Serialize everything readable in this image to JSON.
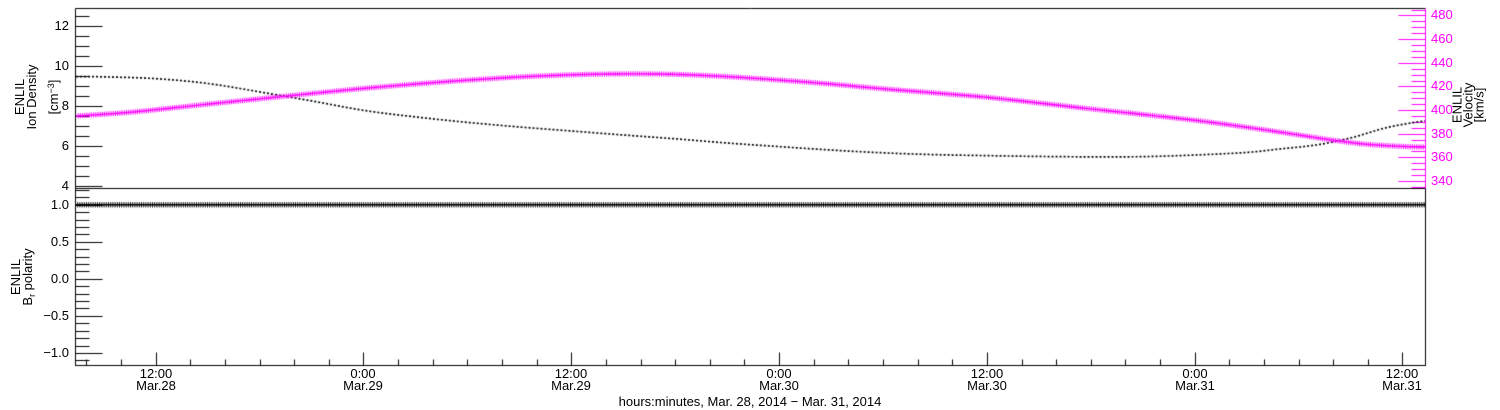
{
  "figure": {
    "background": "#ffffff",
    "axis_color": "#000000",
    "accent_color": "#ff00ff"
  },
  "x_axis": {
    "title": "hours:minutes, Mar. 28, 2014 − Mar. 31, 2014",
    "range_hours_from_mar28_0000": [
      7.37,
      85.33
    ],
    "minor_step": 2,
    "majors": [
      {
        "t": 12,
        "line1": "12:00",
        "line2": "Mar.28"
      },
      {
        "t": 24,
        "line1": "0:00",
        "line2": "Mar.29"
      },
      {
        "t": 36,
        "line1": "12:00",
        "line2": "Mar.29"
      },
      {
        "t": 48,
        "line1": "0:00",
        "line2": "Mar.30"
      },
      {
        "t": 60,
        "line1": "12:00",
        "line2": "Mar.30"
      },
      {
        "t": 72,
        "line1": "0:00",
        "line2": "Mar.31"
      },
      {
        "t": 84,
        "line1": "12:00",
        "line2": "Mar.31"
      }
    ]
  },
  "chart_data": [
    {
      "type": "line",
      "panel": "top",
      "title": "ENLIL ion density and velocity vs time",
      "x_range": [
        7.37,
        85.33
      ],
      "grid": false,
      "left_axis": {
        "title_lines": [
          "ENLIL",
          "Ion Density"
        ],
        "unit_pre": "[cm",
        "unit_sup": "−3",
        "unit_post": "]",
        "range": [
          3.88,
          12.86
        ],
        "minor_step": 0.5,
        "majors": [
          {
            "v": 4,
            "label": "4"
          },
          {
            "v": 6,
            "label": "6"
          },
          {
            "v": 8,
            "label": "8"
          },
          {
            "v": 10,
            "label": "10"
          },
          {
            "v": 12,
            "label": "12"
          }
        ]
      },
      "right_axis": {
        "title_lines": [
          "ENLIL",
          "Velocity",
          "[km/s]"
        ],
        "color": "#ff00ff",
        "range": [
          333.7,
          485.9
        ],
        "minor_step": 5,
        "majors": [
          {
            "v": 340,
            "label": "340"
          },
          {
            "v": 360,
            "label": "360"
          },
          {
            "v": 380,
            "label": "380"
          },
          {
            "v": 400,
            "label": "400"
          },
          {
            "v": 420,
            "label": "420"
          },
          {
            "v": 440,
            "label": "440"
          },
          {
            "v": 460,
            "label": "460"
          },
          {
            "v": 480,
            "label": "480"
          }
        ]
      },
      "series": [
        {
          "name": "ion-density",
          "axis": "left",
          "color": "#000000",
          "style": "dotted",
          "points": [
            [
              7.4,
              9.46
            ],
            [
              9,
              9.45
            ],
            [
              12,
              9.36
            ],
            [
              15,
              9.12
            ],
            [
              18,
              8.7
            ],
            [
              21,
              8.25
            ],
            [
              24,
              7.78
            ],
            [
              27,
              7.45
            ],
            [
              30,
              7.18
            ],
            [
              33,
              6.95
            ],
            [
              36,
              6.75
            ],
            [
              39,
              6.55
            ],
            [
              42,
              6.36
            ],
            [
              45,
              6.15
            ],
            [
              48,
              5.97
            ],
            [
              51,
              5.8
            ],
            [
              54,
              5.66
            ],
            [
              57,
              5.57
            ],
            [
              60,
              5.52
            ],
            [
              63,
              5.48
            ],
            [
              66,
              5.46
            ],
            [
              69,
              5.47
            ],
            [
              72,
              5.55
            ],
            [
              75,
              5.68
            ],
            [
              77,
              5.86
            ],
            [
              79,
              6.05
            ],
            [
              81,
              6.4
            ],
            [
              83,
              6.9
            ],
            [
              84.5,
              7.15
            ],
            [
              85.3,
              7.25
            ]
          ]
        },
        {
          "name": "velocity",
          "axis": "right",
          "color": "#ff00ff",
          "style": "plusline",
          "points": [
            [
              7.4,
              395.0
            ],
            [
              10,
              397.5
            ],
            [
              12,
              400.3
            ],
            [
              15,
              405.0
            ],
            [
              18,
              409.5
            ],
            [
              21,
              414.0
            ],
            [
              24,
              418.3
            ],
            [
              27,
              422.0
            ],
            [
              30,
              425.3
            ],
            [
              33,
              428.0
            ],
            [
              36,
              429.8
            ],
            [
              39,
              430.6
            ],
            [
              42,
              430.2
            ],
            [
              45,
              428.3
            ],
            [
              48,
              425.4
            ],
            [
              51,
              422.0
            ],
            [
              54,
              418.0
            ],
            [
              57,
              414.5
            ],
            [
              60,
              410.8
            ],
            [
              63,
              406.0
            ],
            [
              66,
              401.0
            ],
            [
              69,
              396.3
            ],
            [
              72,
              391.4
            ],
            [
              75,
              385.5
            ],
            [
              78,
              379.0
            ],
            [
              80,
              374.5
            ],
            [
              82,
              371.0
            ],
            [
              84,
              369.3
            ],
            [
              85.3,
              368.7
            ]
          ]
        }
      ]
    },
    {
      "type": "line",
      "panel": "bottom",
      "title": "ENLIL Br polarity vs time",
      "x_range": [
        7.37,
        85.33
      ],
      "grid": false,
      "left_axis": {
        "title_line1": "ENLIL",
        "title_b": "B",
        "title_sub": "r",
        "title_rest": " polarity",
        "range": [
          -1.17,
          1.22
        ],
        "minor_step": 0.1,
        "majors": [
          {
            "v": -1.0,
            "label": "−1.0"
          },
          {
            "v": -0.5,
            "label": "−0.5"
          },
          {
            "v": 0.0,
            "label": "0.0"
          },
          {
            "v": 0.5,
            "label": "0.5"
          },
          {
            "v": 1.0,
            "label": "1.0"
          }
        ]
      },
      "series": [
        {
          "name": "br-polarity",
          "axis": "left",
          "color": "#000000",
          "style": "plusline",
          "points": [
            [
              7.37,
              1.0
            ],
            [
              85.33,
              1.0
            ]
          ]
        }
      ]
    }
  ]
}
